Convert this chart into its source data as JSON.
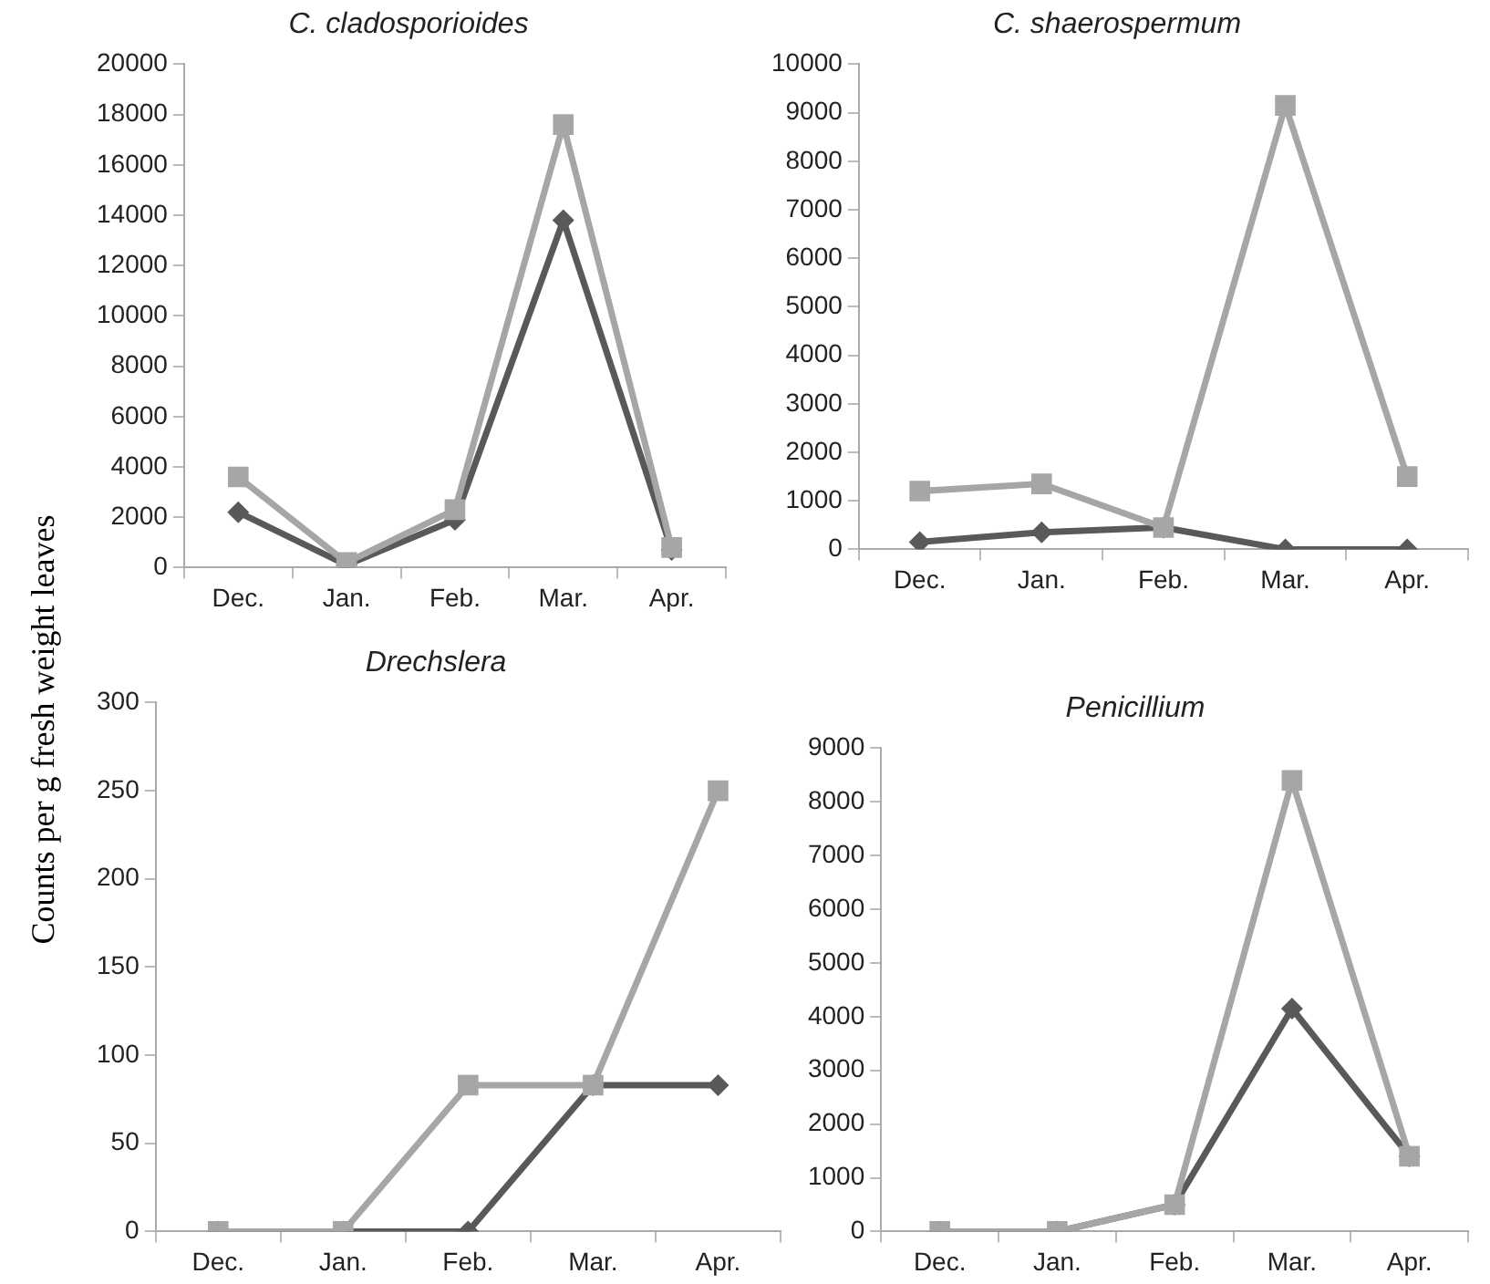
{
  "chart_data": [
    {
      "type": "line",
      "title": "C. cladosporioides",
      "ylabel": "Counts per g fresh weight leaves",
      "categories": [
        "Dec.",
        "Jan.",
        "Feb.",
        "Mar.",
        "Apr."
      ],
      "ylim": [
        0,
        20000
      ],
      "yticks": [
        0,
        2000,
        4000,
        6000,
        8000,
        10000,
        12000,
        14000,
        16000,
        18000,
        20000
      ],
      "series": [
        {
          "color": "#595959",
          "marker": "diamond",
          "values": [
            2200,
            100,
            1900,
            13800,
            700
          ]
        },
        {
          "color": "#a6a6a6",
          "marker": "square",
          "values": [
            3600,
            200,
            2300,
            17600,
            800
          ]
        }
      ]
    },
    {
      "type": "line",
      "title": "C. shaerospermum",
      "categories": [
        "Dec.",
        "Jan.",
        "Feb.",
        "Mar.",
        "Apr."
      ],
      "ylim": [
        0,
        10000
      ],
      "yticks": [
        0,
        1000,
        2000,
        3000,
        4000,
        5000,
        6000,
        7000,
        8000,
        9000,
        10000
      ],
      "series": [
        {
          "color": "#595959",
          "marker": "diamond",
          "values": [
            150,
            350,
            450,
            0,
            0
          ]
        },
        {
          "color": "#a6a6a6",
          "marker": "square",
          "values": [
            1200,
            1350,
            450,
            9150,
            1500
          ]
        }
      ]
    },
    {
      "type": "line",
      "title": "Drechslera",
      "categories": [
        "Dec.",
        "Jan.",
        "Feb.",
        "Mar.",
        "Apr."
      ],
      "ylim": [
        0,
        300
      ],
      "yticks": [
        0,
        50,
        100,
        150,
        200,
        250,
        300
      ],
      "series": [
        {
          "color": "#595959",
          "marker": "diamond",
          "values": [
            0,
            0,
            0,
            83,
            83
          ]
        },
        {
          "color": "#a6a6a6",
          "marker": "square",
          "values": [
            0,
            0,
            83,
            83,
            250
          ]
        }
      ]
    },
    {
      "type": "line",
      "title": "Penicillium",
      "categories": [
        "Dec.",
        "Jan.",
        "Feb.",
        "Mar.",
        "Apr."
      ],
      "ylim": [
        0,
        9000
      ],
      "yticks": [
        0,
        1000,
        2000,
        3000,
        4000,
        5000,
        6000,
        7000,
        8000,
        9000
      ],
      "series": [
        {
          "color": "#595959",
          "marker": "diamond",
          "values": [
            0,
            0,
            500,
            4150,
            1400
          ]
        },
        {
          "color": "#a6a6a6",
          "marker": "square",
          "values": [
            0,
            0,
            500,
            8400,
            1400
          ]
        }
      ]
    }
  ]
}
